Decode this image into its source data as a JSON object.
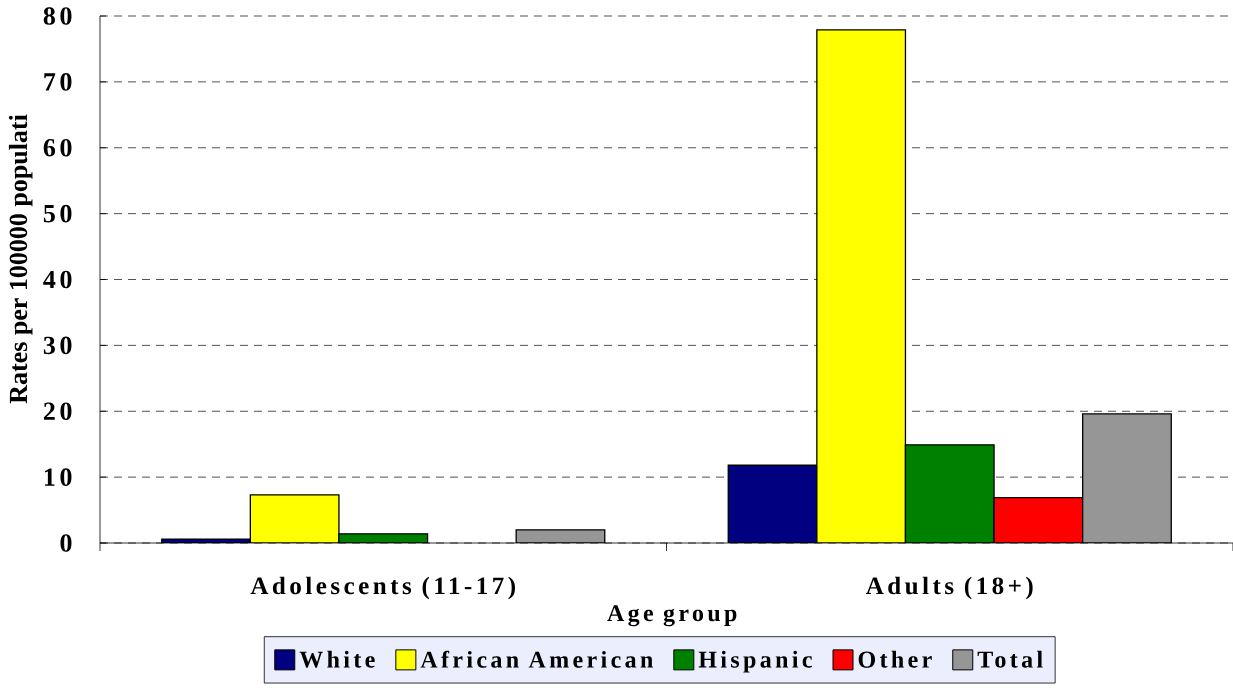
{
  "chart_data": {
    "type": "bar",
    "xlabel": "Age group",
    "ylabel": "Rates per 100000 populati",
    "categories": [
      "Adolescents (11-17)",
      "Adults (18+)"
    ],
    "series": [
      {
        "name": "White",
        "color": "#000080",
        "values": [
          0.6,
          11.8
        ]
      },
      {
        "name": "African American",
        "color": "#ffff00",
        "values": [
          7.3,
          77.9
        ]
      },
      {
        "name": "Hispanic",
        "color": "#008000",
        "values": [
          1.4,
          14.9
        ]
      },
      {
        "name": "Other",
        "color": "#ff0000",
        "values": [
          null,
          6.9
        ]
      },
      {
        "name": "Total",
        "color": "#969696",
        "values": [
          2.0,
          19.6
        ]
      }
    ],
    "ylim": [
      0,
      80
    ],
    "yticks": [
      0,
      10,
      20,
      30,
      40,
      50,
      60,
      70,
      80
    ],
    "grid": "y",
    "legend": "bottom"
  }
}
